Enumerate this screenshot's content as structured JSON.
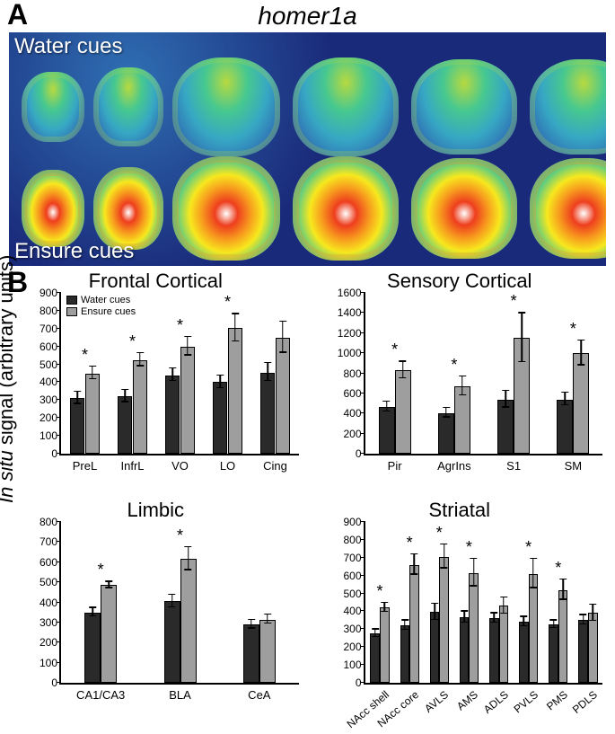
{
  "figure_title": "homer1a",
  "panel_labels": {
    "A": "A",
    "B": "B"
  },
  "panel_a": {
    "row_top_label": "Water cues",
    "row_bottom_label": "Ensure cues",
    "background_color": "#1a2a7a",
    "heatmap_palette": [
      "#1a2a7a",
      "#2f6fb3",
      "#37a7c4",
      "#46c890",
      "#b7d940",
      "#f7e81e",
      "#f79a1e",
      "#ee3e1e",
      "#ffffff"
    ],
    "slices_per_row": 6,
    "label_color": "#ffffff"
  },
  "panel_b": {
    "ylabel_prefix": "In situ",
    "ylabel_rest": " signal (arbitrary units)",
    "legend": {
      "water": {
        "label": "Water cues",
        "color": "#2a2a2a"
      },
      "ensure": {
        "label": "Ensure cues",
        "color": "#9e9e9e"
      }
    },
    "charts": [
      {
        "title": "Frontal Cortical",
        "ymax": 900,
        "ystep": 100,
        "show_legend": true,
        "categories": [
          "PreL",
          "InfrL",
          "VO",
          "LO",
          "Cing"
        ],
        "water": [
          310,
          320,
          440,
          400,
          455
        ],
        "ensure": [
          450,
          525,
          600,
          703,
          650
        ],
        "water_err": [
          38,
          38,
          40,
          40,
          55
        ],
        "ensure_err": [
          40,
          40,
          55,
          80,
          90
        ],
        "sig": [
          true,
          true,
          true,
          true,
          false
        ],
        "xrot": 0
      },
      {
        "title": "Sensory Cortical",
        "ymax": 1600,
        "ystep": 200,
        "show_legend": false,
        "categories": [
          "Pir",
          "AgrIns",
          "S1",
          "SM"
        ],
        "water": [
          465,
          405,
          540,
          540
        ],
        "ensure": [
          830,
          670,
          1150,
          1000
        ],
        "water_err": [
          55,
          55,
          90,
          70
        ],
        "ensure_err": [
          90,
          100,
          250,
          130
        ],
        "sig": [
          true,
          true,
          true,
          true
        ],
        "xrot": 0
      },
      {
        "title": "Limbic",
        "ymax": 800,
        "ystep": 100,
        "show_legend": false,
        "categories": [
          "CA1/CA3",
          "BLA",
          "CeA"
        ],
        "water": [
          350,
          405,
          290
        ],
        "ensure": [
          485,
          615,
          315
        ],
        "water_err": [
          25,
          35,
          25
        ],
        "ensure_err": [
          20,
          60,
          25
        ],
        "sig": [
          true,
          true,
          false
        ],
        "xrot": 0
      },
      {
        "title": "Striatal",
        "ymax": 900,
        "ystep": 100,
        "show_legend": false,
        "categories": [
          "NAcc shell",
          "NAcc core",
          "AVLS",
          "AMS",
          "ADLS",
          "PVLS",
          "PMS",
          "PDLS"
        ],
        "water": [
          275,
          320,
          395,
          365,
          360,
          340,
          325,
          350
        ],
        "ensure": [
          420,
          660,
          705,
          615,
          430,
          610,
          520,
          390
        ],
        "water_err": [
          25,
          30,
          50,
          35,
          30,
          30,
          25,
          30
        ],
        "ensure_err": [
          30,
          60,
          70,
          80,
          50,
          85,
          60,
          50
        ],
        "sig": [
          true,
          true,
          true,
          true,
          false,
          true,
          true,
          false
        ],
        "xrot": -40
      }
    ]
  },
  "colors": {
    "axis": "#000000",
    "text": "#000000",
    "bg": "#ffffff"
  },
  "fonts": {
    "panel_label_size": 32,
    "subtitle_size": 22,
    "tick_size": 12
  }
}
